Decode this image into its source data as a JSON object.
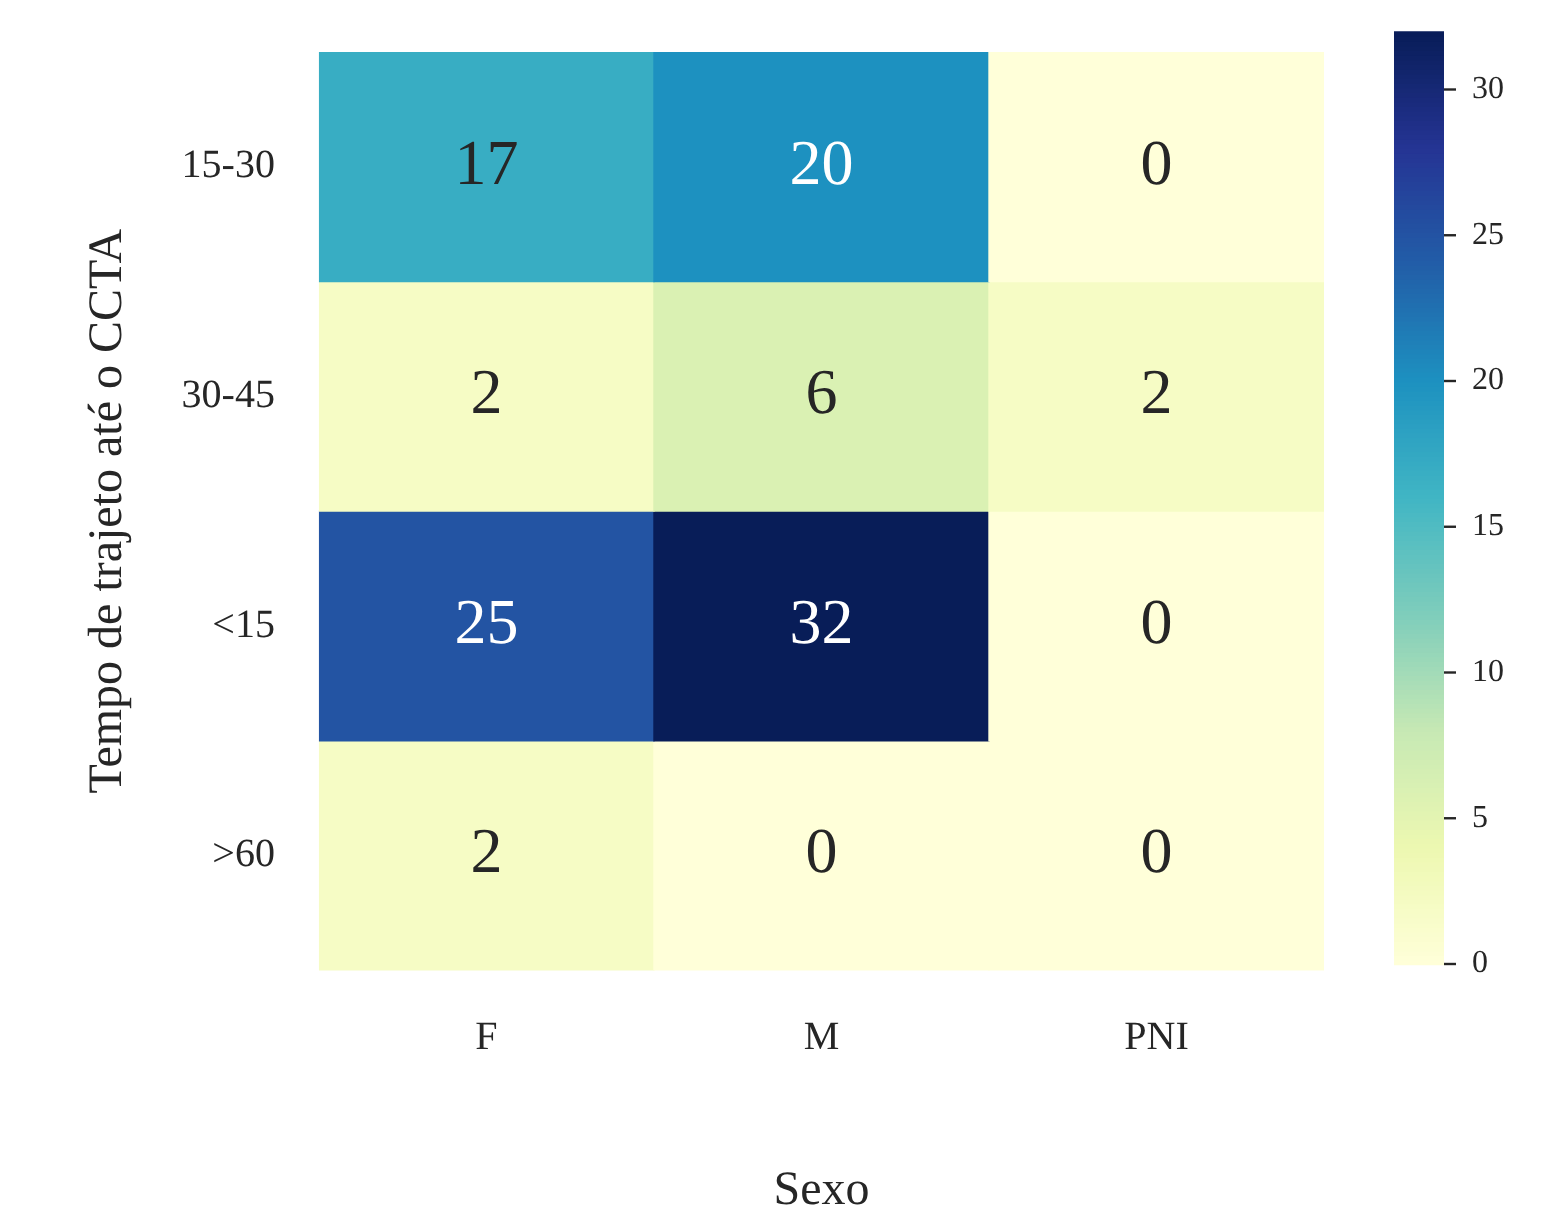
{
  "chart_data": {
    "type": "heatmap",
    "xlabel": "Sexo",
    "ylabel": "Tempo de trajeto até o CCTA",
    "categories": [
      "F",
      "M",
      "PNI"
    ],
    "y_categories": [
      "15-30",
      "30-45",
      "<15",
      ">60"
    ],
    "cells": [
      [
        17,
        20,
        0
      ],
      [
        2,
        6,
        2
      ],
      [
        25,
        32,
        0
      ],
      [
        2,
        0,
        0
      ]
    ],
    "data_labels": true,
    "clim": [
      0,
      32
    ],
    "cticks": [
      0,
      5,
      10,
      15,
      20,
      25,
      30
    ]
  }
}
